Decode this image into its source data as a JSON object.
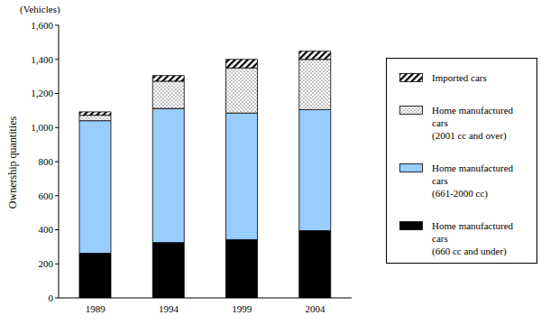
{
  "chart_data": {
    "type": "bar",
    "stacked": true,
    "ylabel": "Ownership quantities",
    "yunit": "(Vehicles)",
    "categories": [
      "1989",
      "1994",
      "1999",
      "2004"
    ],
    "series": [
      {
        "name": "Home manufactured cars (660 cc and under)",
        "color": "#000000",
        "values": [
          262,
          325,
          342,
          395
        ]
      },
      {
        "name": "Home manufactured cars (661-2000 cc)",
        "color": "#99ccff",
        "values": [
          778,
          787,
          743,
          710
        ]
      },
      {
        "name": "Home manufactured cars (2001 cc and over)",
        "color": "#000000",
        "values": [
          32,
          160,
          265,
          295
        ]
      },
      {
        "name": "Imported cars",
        "color": "#000000",
        "values": [
          20,
          33,
          50,
          48
        ]
      }
    ],
    "ylim": [
      0,
      1600
    ],
    "yticks": [
      0,
      200,
      400,
      600,
      800,
      {
        "value": 1000,
        "label": "1,000"
      },
      {
        "value": 1200,
        "label": "1,200"
      },
      {
        "value": 1400,
        "label": "1,400"
      },
      {
        "value": 1600,
        "label": "1,600"
      }
    ],
    "legend": "right",
    "grid": false
  }
}
